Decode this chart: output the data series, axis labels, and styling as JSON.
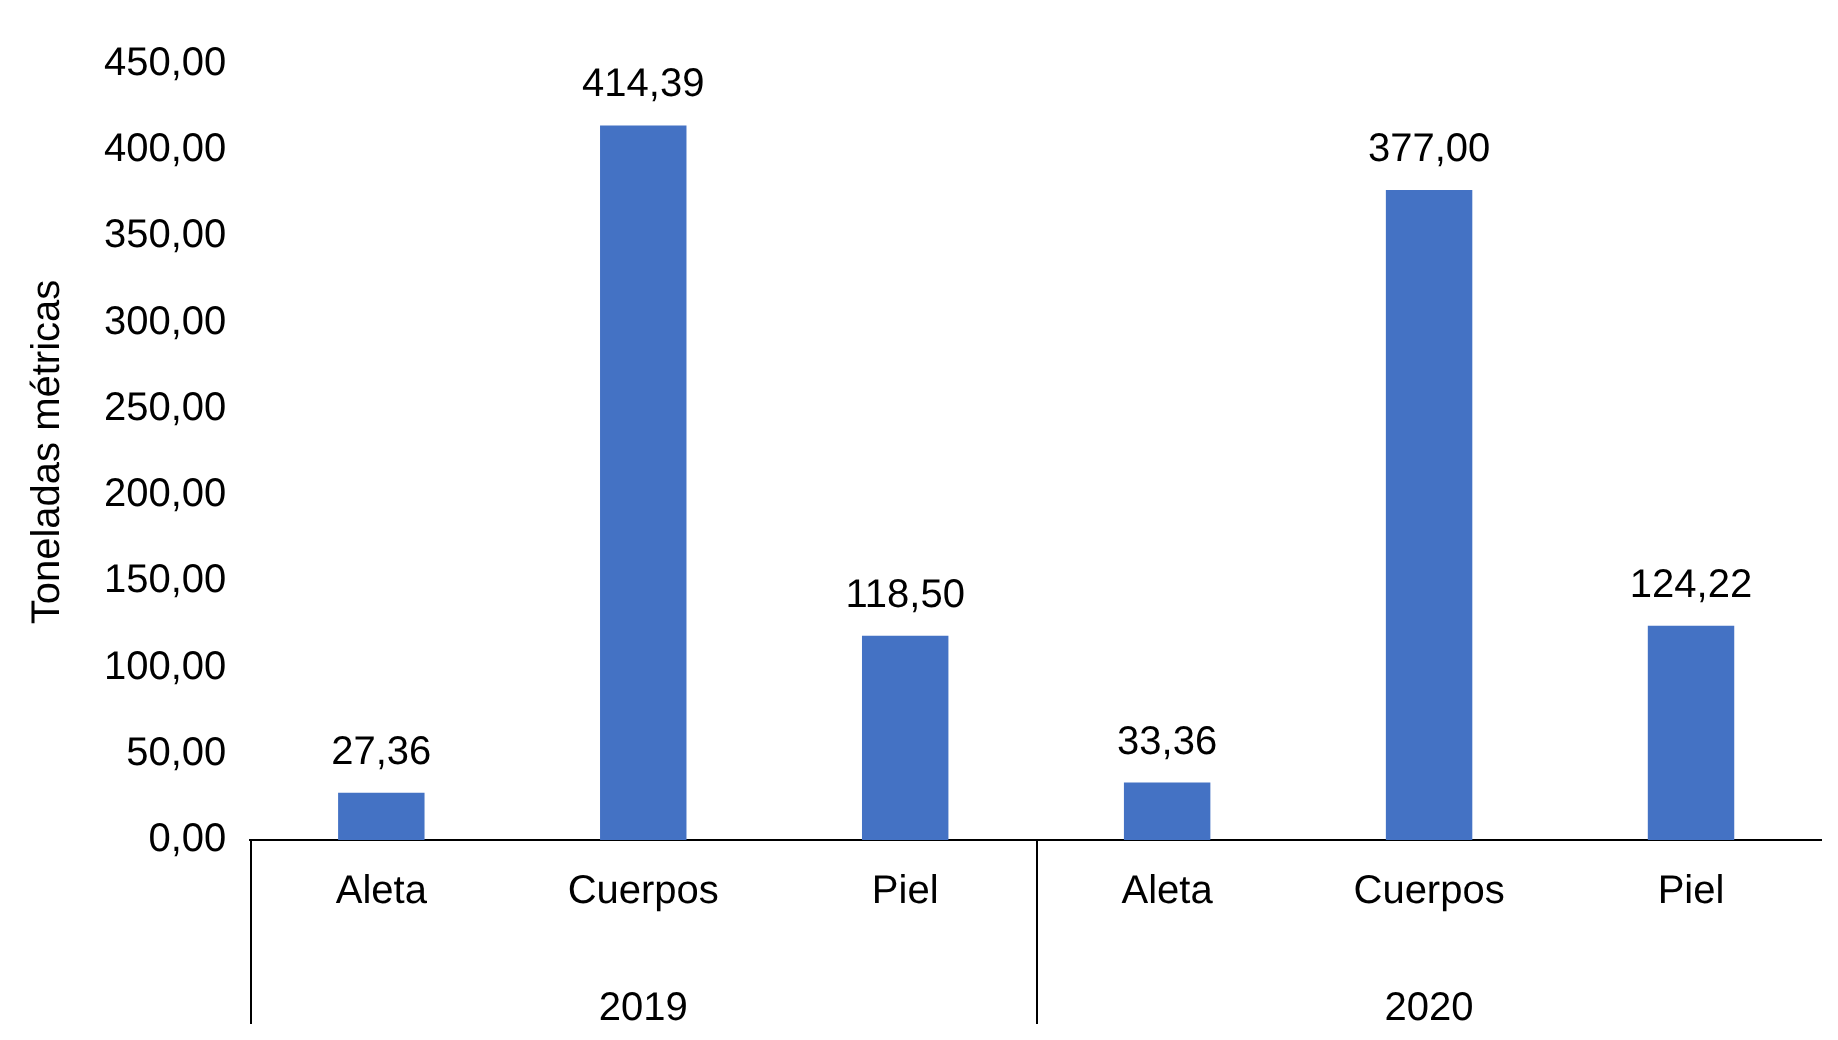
{
  "chart_data": {
    "type": "bar",
    "ylabel": "Toneladas métricas",
    "categories": [
      "Aleta",
      "Cuerpos",
      "Piel",
      "Aleta",
      "Cuerpos",
      "Piel"
    ],
    "values": [
      27.36,
      414.39,
      118.5,
      33.36,
      377,
      124.22
    ],
    "value_labels": [
      "27,36",
      "414,39",
      "118,50",
      "33,36",
      "377,00",
      "124,22"
    ],
    "color": "#4472c4",
    "ylim": [
      0,
      450
    ],
    "yticks": [
      {
        "value": 0,
        "label": "0,00"
      },
      {
        "value": 50,
        "label": "50,00"
      },
      {
        "value": 100,
        "label": "100,00"
      },
      {
        "value": 150,
        "label": "150,00"
      },
      {
        "value": 200,
        "label": "200,00"
      },
      {
        "value": 250,
        "label": "250,00"
      },
      {
        "value": 300,
        "label": "300,00"
      },
      {
        "value": 350,
        "label": "350,00"
      },
      {
        "value": 400,
        "label": "400,00"
      },
      {
        "value": 450,
        "label": "450,00"
      }
    ],
    "annotations": [
      "2019",
      "2020"
    ],
    "grid": false,
    "legend": false
  }
}
